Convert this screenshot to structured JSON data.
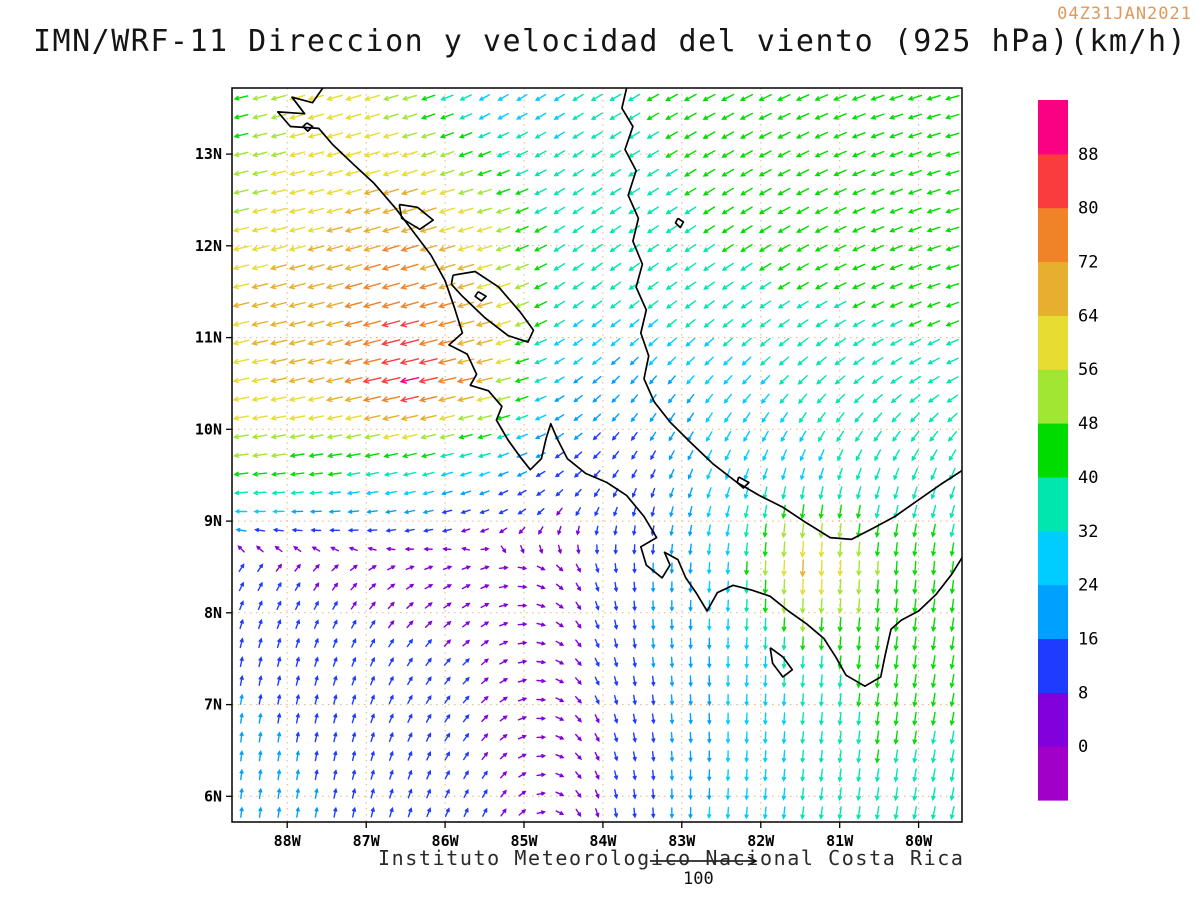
{
  "header": {
    "title": "IMN/WRF-11 Direccion y velocidad del viento (925 hPa)(km/h)",
    "timestamp": "04Z31JAN2021",
    "timestamp_color": "#de995a"
  },
  "footer": {
    "credit": "Instituto Meteorologico Nacional Costa Rica",
    "reference_vector_label": "100"
  },
  "chart_data": {
    "type": "vector_field",
    "title": "IMN/WRF-11 Direccion y velocidad del viento (925 hPa)(km/h)",
    "timestamp": "04Z31JAN2021",
    "model": "IMN/WRF-11",
    "variable": "Direccion y velocidad del viento",
    "level": "925 hPa",
    "units": "km/h",
    "x_axis": {
      "ticks": [
        "88W",
        "87W",
        "86W",
        "85W",
        "84W",
        "83W",
        "82W",
        "81W",
        "80W"
      ],
      "lon_range": [
        -88.7,
        -79.45
      ]
    },
    "y_axis": {
      "ticks": [
        "13N",
        "12N",
        "11N",
        "10N",
        "9N",
        "8N",
        "7N",
        "6N"
      ],
      "lat_range": [
        5.72,
        13.72
      ]
    },
    "grid": {
      "on": true,
      "style": "dotted",
      "color": "#e6b27a"
    },
    "coast_color": "#000000",
    "colorbar": {
      "position": "right",
      "levels": [
        0,
        8,
        16,
        24,
        32,
        40,
        48,
        56,
        64,
        72,
        80,
        88
      ],
      "tick_labels_top_to_bottom": [
        "88",
        "80",
        "72",
        "64",
        "56",
        "48",
        "40",
        "32",
        "24",
        "16",
        "8",
        "0"
      ],
      "colors": [
        "#a000c8",
        "#8200dc",
        "#1e3cff",
        "#00a0ff",
        "#00cdff",
        "#00e6af",
        "#00dc00",
        "#a0e632",
        "#e6dc32",
        "#e6af2d",
        "#f08228",
        "#fa3c3c",
        "#fa0082"
      ]
    },
    "wind_grid": {
      "units": "km/h",
      "lats": [
        13.5,
        12.5,
        11.5,
        10.5,
        9.5,
        8.5,
        7.5,
        6.5,
        5.7
      ],
      "lons": [
        -88.7,
        -87.5,
        -86.5,
        -85.5,
        -84.5,
        -83.5,
        -82.5,
        -81.5,
        -80.5,
        -79.4
      ],
      "u": [
        [
          -42,
          -62,
          -50,
          -25,
          -26,
          -35,
          -38,
          -40,
          -42,
          -45
        ],
        [
          -52,
          -60,
          -66,
          -50,
          -28,
          -32,
          -35,
          -38,
          -40,
          -42
        ],
        [
          -62,
          -68,
          -76,
          -62,
          -30,
          -30,
          -32,
          -35,
          -38,
          -40
        ],
        [
          -60,
          -66,
          -88,
          -65,
          -18,
          -12,
          -18,
          -25,
          -30,
          -35
        ],
        [
          -48,
          -40,
          -35,
          -22,
          -10,
          -5,
          -10,
          -8,
          -12,
          -15
        ],
        [
          5,
          4,
          5,
          6,
          4,
          0,
          -2,
          -3,
          -3,
          -5
        ],
        [
          3,
          4,
          5,
          6,
          5,
          2,
          0,
          -2,
          -5,
          -8
        ],
        [
          2,
          3,
          4,
          5,
          4,
          2,
          0,
          -3,
          -5,
          -8
        ],
        [
          2,
          3,
          4,
          4,
          3,
          1,
          -2,
          -4,
          -6,
          -8
        ]
      ],
      "v": [
        [
          -10,
          -18,
          -15,
          -14,
          -16,
          -20,
          -20,
          -18,
          -15,
          -12
        ],
        [
          -12,
          -15,
          -20,
          -15,
          -18,
          -20,
          -22,
          -20,
          -16,
          -12
        ],
        [
          -15,
          -18,
          -22,
          -18,
          -20,
          -22,
          -22,
          -20,
          -16,
          -12
        ],
        [
          -12,
          -15,
          -20,
          -15,
          -12,
          -15,
          -20,
          -25,
          -22,
          -18
        ],
        [
          -5,
          -5,
          -8,
          -8,
          -8,
          -10,
          -25,
          -30,
          -32,
          -35
        ],
        [
          8,
          4,
          2,
          2,
          -4,
          -15,
          -28,
          -70,
          -48,
          -40
        ],
        [
          15,
          12,
          8,
          5,
          -3,
          -15,
          -25,
          -35,
          -45,
          -42
        ],
        [
          18,
          15,
          10,
          6,
          -2,
          -12,
          -25,
          -32,
          -40,
          -38
        ],
        [
          18,
          16,
          12,
          8,
          -2,
          -14,
          -26,
          -33,
          -38,
          -36
        ]
      ]
    },
    "coastline_paths": [
      [
        [
          -87.55,
          13.72
        ],
        [
          -87.68,
          13.56
        ],
        [
          -87.94,
          13.62
        ],
        [
          -87.78,
          13.44
        ],
        [
          -88.12,
          13.46
        ],
        [
          -87.96,
          13.3
        ],
        [
          -87.6,
          13.28
        ],
        [
          -87.42,
          13.1
        ],
        [
          -87.15,
          12.88
        ],
        [
          -86.9,
          12.68
        ],
        [
          -86.62,
          12.4
        ],
        [
          -86.4,
          12.15
        ],
        [
          -86.18,
          11.9
        ],
        [
          -86.0,
          11.62
        ],
        [
          -85.88,
          11.32
        ],
        [
          -85.78,
          11.05
        ],
        [
          -85.95,
          10.92
        ],
        [
          -85.72,
          10.82
        ],
        [
          -85.6,
          10.6
        ],
        [
          -85.68,
          10.48
        ],
        [
          -85.45,
          10.42
        ],
        [
          -85.28,
          10.25
        ],
        [
          -85.35,
          10.1
        ],
        [
          -85.2,
          9.88
        ],
        [
          -85.05,
          9.7
        ],
        [
          -84.92,
          9.56
        ],
        [
          -84.78,
          9.68
        ],
        [
          -84.72,
          9.9
        ],
        [
          -84.66,
          10.06
        ],
        [
          -84.58,
          9.9
        ],
        [
          -84.45,
          9.68
        ],
        [
          -84.22,
          9.52
        ],
        [
          -83.95,
          9.42
        ],
        [
          -83.7,
          9.28
        ],
        [
          -83.48,
          9.05
        ],
        [
          -83.32,
          8.82
        ],
        [
          -83.52,
          8.72
        ],
        [
          -83.45,
          8.52
        ],
        [
          -83.25,
          8.38
        ],
        [
          -83.15,
          8.52
        ],
        [
          -83.22,
          8.66
        ],
        [
          -83.05,
          8.58
        ],
        [
          -82.95,
          8.38
        ],
        [
          -82.82,
          8.22
        ],
        [
          -82.68,
          8.02
        ],
        [
          -82.55,
          8.22
        ],
        [
          -82.35,
          8.3
        ],
        [
          -82.12,
          8.25
        ],
        [
          -81.88,
          8.18
        ],
        [
          -81.65,
          8.02
        ],
        [
          -81.42,
          7.88
        ],
        [
          -81.2,
          7.72
        ],
        [
          -81.05,
          7.52
        ],
        [
          -80.92,
          7.32
        ],
        [
          -80.68,
          7.2
        ],
        [
          -80.48,
          7.3
        ],
        [
          -80.42,
          7.55
        ],
        [
          -80.35,
          7.82
        ],
        [
          -80.22,
          7.92
        ],
        [
          -80.0,
          8.02
        ],
        [
          -79.78,
          8.2
        ],
        [
          -79.58,
          8.42
        ],
        [
          -79.45,
          8.6
        ]
      ],
      [
        [
          -83.7,
          13.72
        ],
        [
          -83.76,
          13.5
        ],
        [
          -83.62,
          13.3
        ],
        [
          -83.72,
          13.05
        ],
        [
          -83.58,
          12.82
        ],
        [
          -83.68,
          12.55
        ],
        [
          -83.55,
          12.3
        ],
        [
          -83.62,
          12.05
        ],
        [
          -83.5,
          11.8
        ],
        [
          -83.58,
          11.55
        ],
        [
          -83.45,
          11.3
        ],
        [
          -83.52,
          11.05
        ],
        [
          -83.42,
          10.8
        ],
        [
          -83.48,
          10.55
        ],
        [
          -83.35,
          10.3
        ],
        [
          -83.15,
          10.08
        ],
        [
          -82.88,
          9.85
        ],
        [
          -82.6,
          9.62
        ],
        [
          -82.3,
          9.42
        ],
        [
          -82.02,
          9.28
        ],
        [
          -81.72,
          9.15
        ],
        [
          -81.42,
          8.98
        ],
        [
          -81.12,
          8.82
        ],
        [
          -80.85,
          8.8
        ],
        [
          -80.58,
          8.92
        ],
        [
          -80.3,
          9.05
        ],
        [
          -80.02,
          9.22
        ],
        [
          -79.72,
          9.4
        ],
        [
          -79.45,
          9.55
        ]
      ],
      [
        [
          -85.9,
          11.68
        ],
        [
          -85.62,
          11.72
        ],
        [
          -85.32,
          11.55
        ],
        [
          -85.05,
          11.28
        ],
        [
          -84.88,
          11.08
        ],
        [
          -84.95,
          10.95
        ],
        [
          -85.2,
          11.02
        ],
        [
          -85.5,
          11.22
        ],
        [
          -85.78,
          11.45
        ],
        [
          -85.92,
          11.58
        ],
        [
          -85.9,
          11.68
        ]
      ],
      [
        [
          -86.58,
          12.45
        ],
        [
          -86.35,
          12.42
        ],
        [
          -86.15,
          12.28
        ],
        [
          -86.32,
          12.18
        ],
        [
          -86.55,
          12.3
        ],
        [
          -86.58,
          12.45
        ]
      ],
      [
        [
          -85.58,
          11.5
        ],
        [
          -85.48,
          11.45
        ],
        [
          -85.54,
          11.4
        ],
        [
          -85.62,
          11.45
        ],
        [
          -85.58,
          11.5
        ]
      ],
      [
        [
          -81.88,
          7.62
        ],
        [
          -81.72,
          7.52
        ],
        [
          -81.6,
          7.38
        ],
        [
          -81.72,
          7.3
        ],
        [
          -81.85,
          7.45
        ],
        [
          -81.88,
          7.62
        ]
      ],
      [
        [
          -82.28,
          9.48
        ],
        [
          -82.15,
          9.42
        ],
        [
          -82.22,
          9.36
        ],
        [
          -82.3,
          9.42
        ],
        [
          -82.28,
          9.48
        ]
      ],
      [
        [
          -83.05,
          12.3
        ],
        [
          -82.98,
          12.26
        ],
        [
          -83.02,
          12.2
        ],
        [
          -83.08,
          12.25
        ],
        [
          -83.05,
          12.3
        ]
      ],
      [
        [
          -87.75,
          13.34
        ],
        [
          -87.68,
          13.3
        ],
        [
          -87.74,
          13.25
        ],
        [
          -87.8,
          13.3
        ],
        [
          -87.75,
          13.34
        ]
      ]
    ]
  }
}
